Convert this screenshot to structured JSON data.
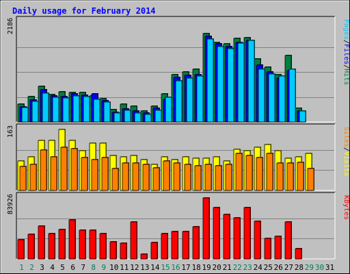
{
  "chart_data": {
    "type": "bar",
    "title": "Daily usage for February 2014",
    "categories": [
      "1",
      "2",
      "3",
      "4",
      "5",
      "6",
      "7",
      "8",
      "9",
      "10",
      "11",
      "12",
      "13",
      "14",
      "15",
      "16",
      "17",
      "18",
      "19",
      "20",
      "21",
      "22",
      "23",
      "24",
      "25",
      "26",
      "27",
      "28",
      "29",
      "30",
      "31"
    ],
    "weekend_days": [
      "1",
      "2",
      "8",
      "9",
      "15",
      "16",
      "22",
      "23",
      "29",
      "30"
    ],
    "panels": [
      {
        "id": "pages-files-hits",
        "max_label": "2186",
        "ymax": 2186,
        "ylabels": [
          "Pages",
          "/",
          "Files",
          "/",
          "Hits"
        ],
        "series": [
          {
            "name": "Hits",
            "color": "#008040",
            "values": [
              385,
              550,
              780,
              600,
              665,
              650,
              650,
              575,
              515,
              270,
              390,
              340,
              245,
              350,
              620,
              1040,
              1090,
              1150,
              1926,
              1734,
              1711,
              1824,
              1848,
              1373,
              1200,
              1040,
              1450,
              299,
              0,
              0,
              0
            ]
          },
          {
            "name": "Files",
            "color": "#0000ff",
            "values": [
              330,
              480,
              700,
              570,
              560,
              620,
              590,
              610,
              470,
              210,
              280,
              240,
              200,
              295,
              500,
              980,
              1020,
              1040,
              1869,
              1706,
              1654,
              1743,
              1789,
              1244,
              1100,
              960,
              1120,
              245,
              0,
              0,
              0
            ]
          },
          {
            "name": "Pages",
            "color": "#00ccff",
            "values": [
              317,
              456,
              625,
              539,
              520,
              570,
              553,
              496,
              439,
              200,
              258,
              200,
              172,
              248,
              539,
              897,
              956,
              999,
              1816,
              1646,
              1596,
              1720,
              1781,
              1158,
              1051,
              1000,
              1147,
              240,
              0,
              0,
              0
            ]
          }
        ]
      },
      {
        "id": "visits-sites",
        "max_label": "163",
        "ymax": 163,
        "ylabels": [
          "Sites",
          "/",
          "Visits"
        ],
        "series": [
          {
            "name": "Visits",
            "color": "#ffff00",
            "values": [
              79,
              90,
              133,
              133,
              163,
              133,
              106,
              126,
              126,
              93,
              90,
              93,
              82,
              70,
              90,
              82,
              90,
              86,
              86,
              90,
              79,
              110,
              106,
              115,
              122,
              106,
              86,
              90,
              98,
              0,
              0
            ]
          },
          {
            "name": "Sites",
            "color": "#ff8000",
            "values": [
              64,
              70,
              108,
              90,
              115,
              112,
              88,
              82,
              88,
              59,
              74,
              74,
              70,
              60,
              79,
              74,
              70,
              66,
              69,
              66,
              69,
              98,
              93,
              88,
              98,
              74,
              74,
              76,
              59,
              0,
              0
            ]
          }
        ]
      },
      {
        "id": "kbytes",
        "max_label": "83926",
        "ymax": 83926,
        "ylabels": [
          "KBytes"
        ],
        "series": [
          {
            "name": "KBytes",
            "color": "#ff0000",
            "values": [
              26000,
              33500,
              45000,
              34500,
              41000,
              54000,
              39500,
              40000,
              34500,
              24000,
              22000,
              51000,
              7000,
              23000,
              34500,
              37500,
              38000,
              44000,
              83926,
              70500,
              61500,
              57000,
              71000,
              51500,
              28500,
              31500,
              50500,
              14000,
              0,
              0,
              0
            ]
          }
        ]
      }
    ]
  }
}
